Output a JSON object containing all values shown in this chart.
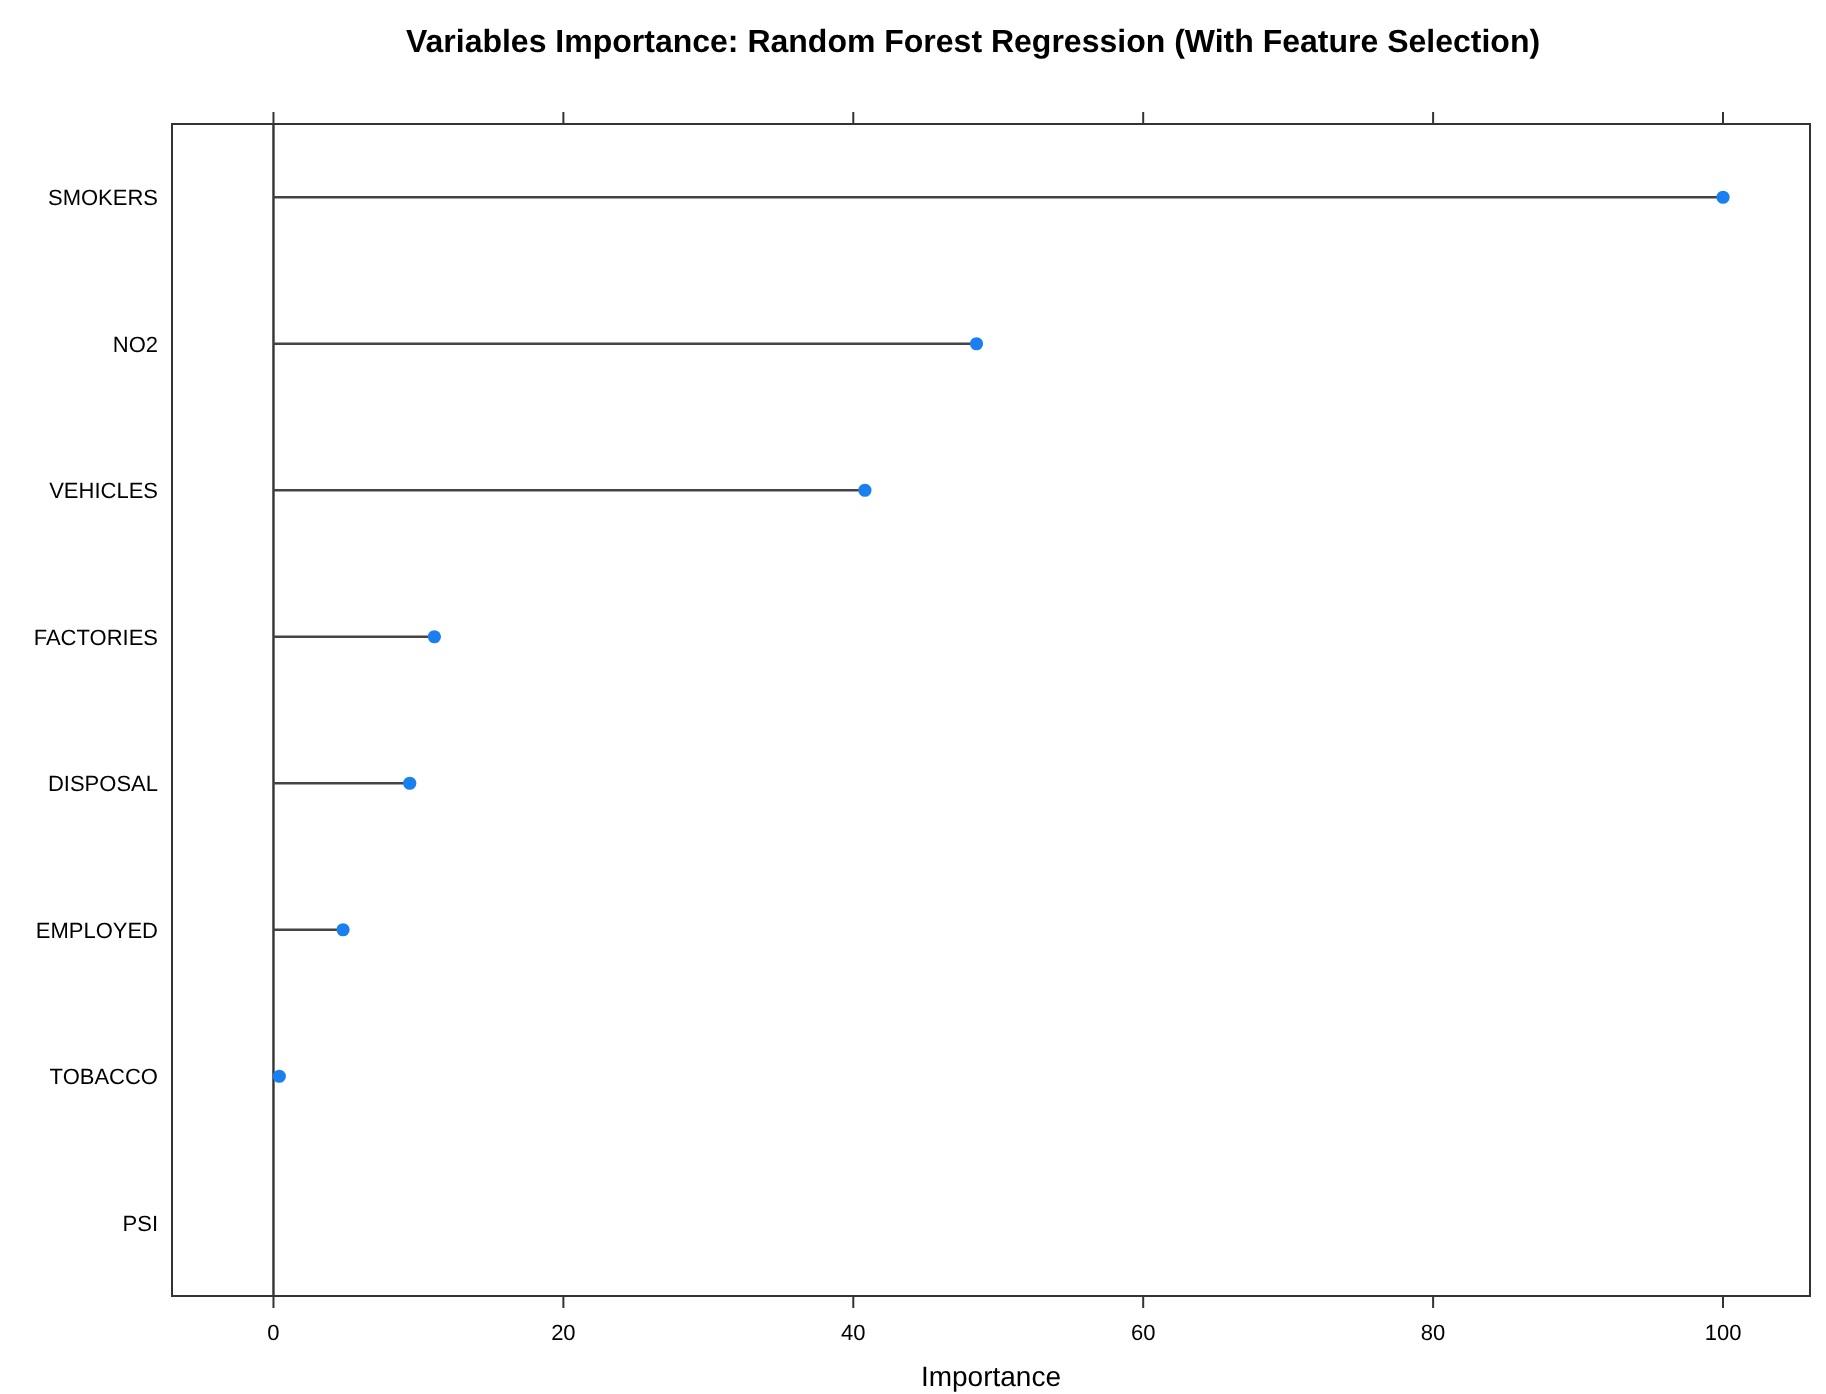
{
  "chart_data": {
    "type": "lollipop",
    "orientation": "horizontal",
    "title": "Variables Importance: Random Forest Regression (With Feature Selection)",
    "xlabel": "Importance",
    "categories": [
      "SMOKERS",
      "NO2",
      "VEHICLES",
      "FACTORIES",
      "DISPOSAL",
      "EMPLOYED",
      "TOBACCO",
      "PSI"
    ],
    "values": [
      100,
      48.5,
      40.8,
      11.1,
      9.4,
      4.8,
      0.4,
      null
    ],
    "color": "#1a80f0",
    "xlim": [
      -7,
      106
    ],
    "xticks": [
      0,
      20,
      40,
      60,
      80,
      100
    ],
    "ref_lines": [
      {
        "axis": "x",
        "value": 0
      }
    ]
  }
}
